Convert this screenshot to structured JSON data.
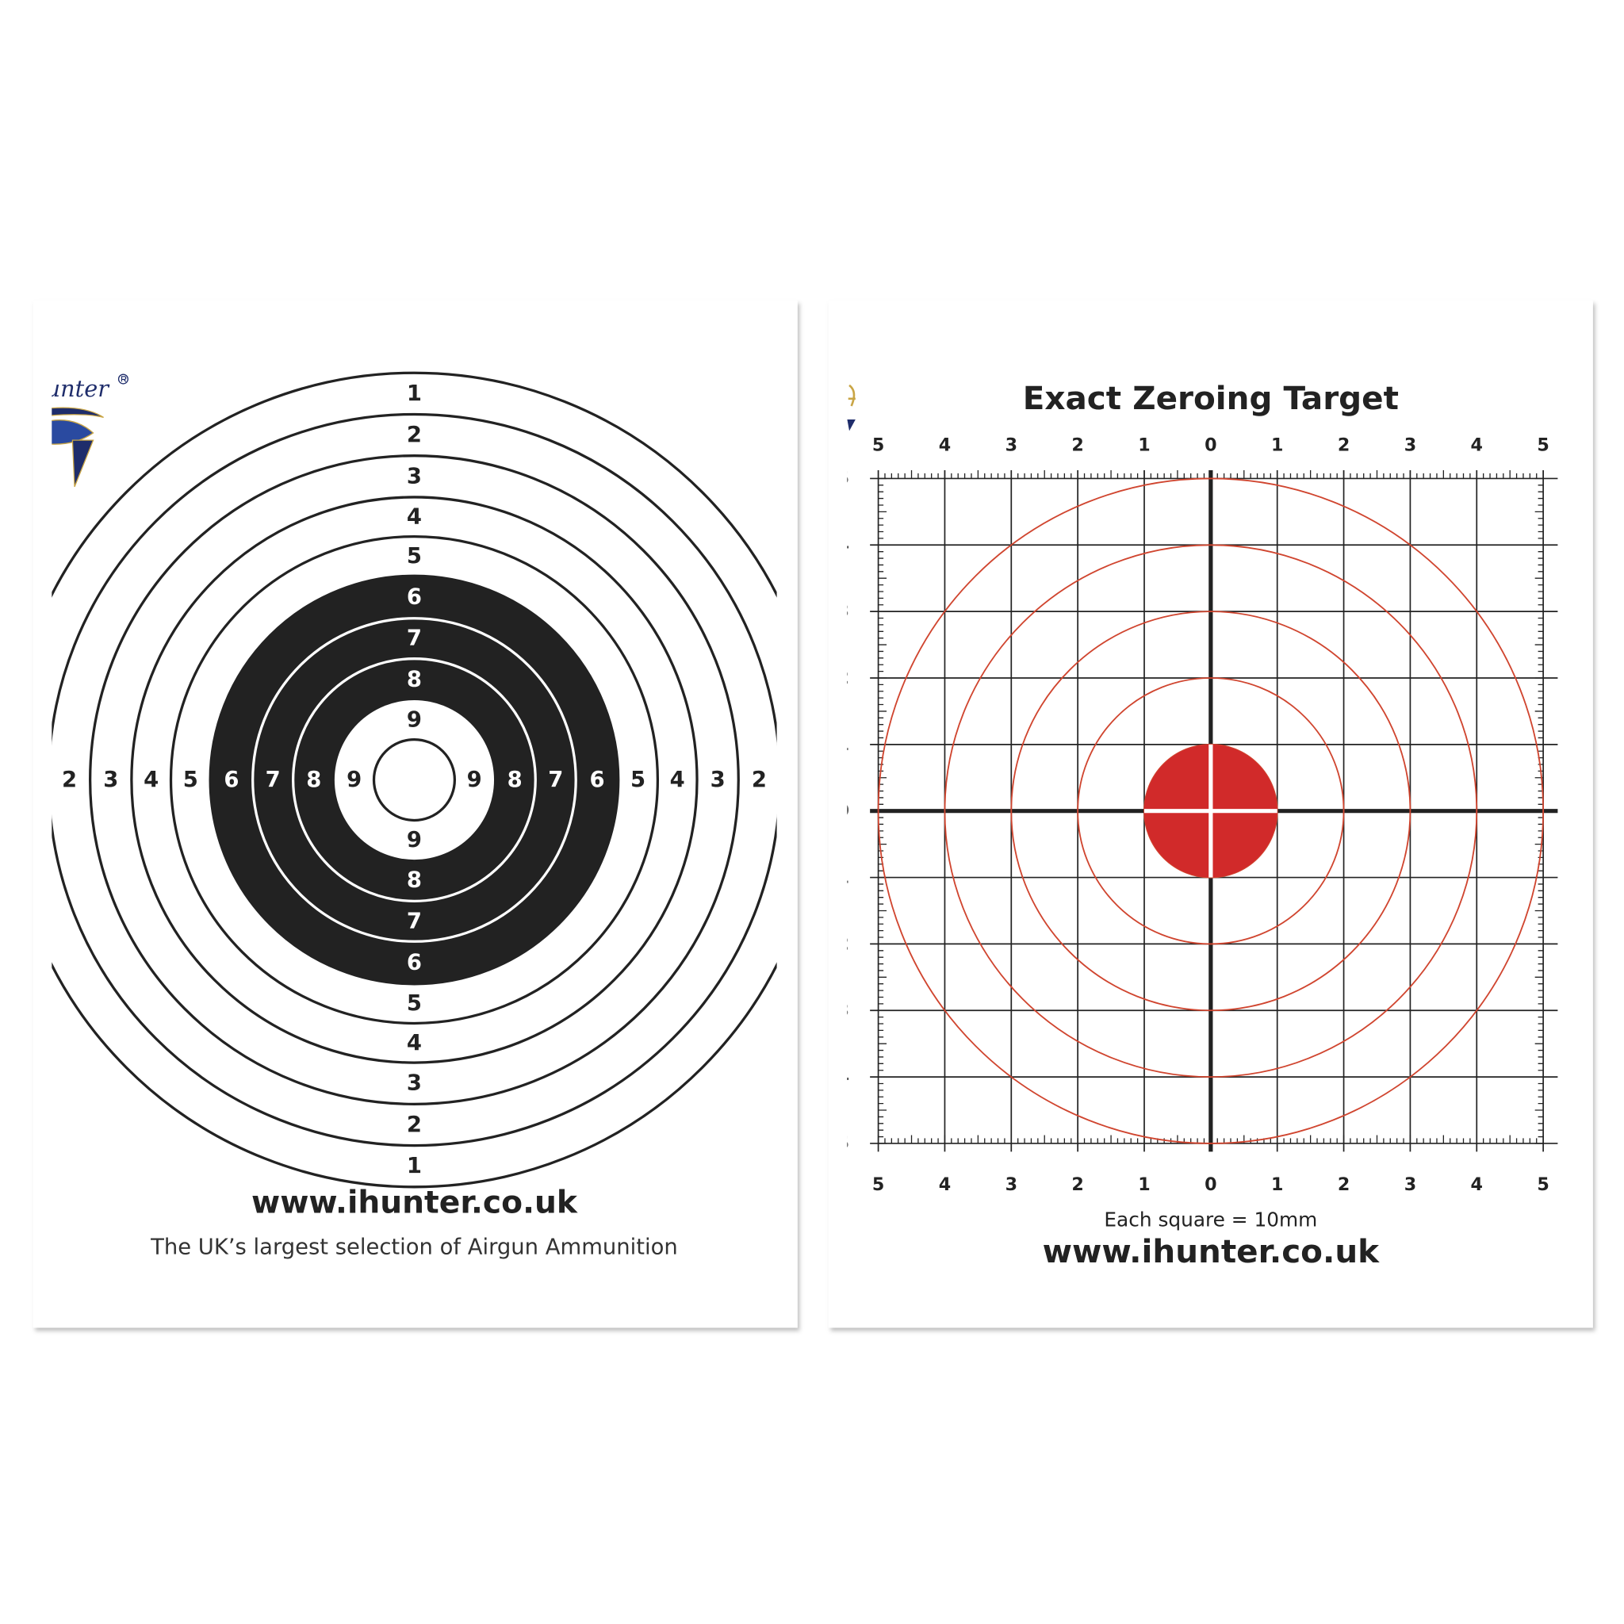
{
  "left_target": {
    "ring_labels_vertical": [
      "1",
      "2",
      "3",
      "4",
      "5",
      "6",
      "7",
      "8",
      "9"
    ],
    "ring_labels_horizontal": [
      "2",
      "3",
      "4",
      "5",
      "6",
      "7",
      "8",
      "9"
    ],
    "website": "www.ihunter.co.uk",
    "tagline": "The UK’s largest selection of Airgun Ammunition",
    "logo_text": "hunter",
    "colors": {
      "ink": "#222222",
      "paper": "#ffffff",
      "logo_blue": "#1f2d6b",
      "logo_gold": "#c9a545"
    }
  },
  "right_target": {
    "title": "Exact Zeroing Target",
    "axis_labels": [
      "5",
      "4",
      "3",
      "2",
      "1",
      "0",
      "1",
      "2",
      "3",
      "4",
      "5"
    ],
    "caption": "Each square = 10mm",
    "website": "www.ihunter.co.uk",
    "grid_squares": 10,
    "ring_count": 5,
    "colors": {
      "grid": "#222222",
      "rings": "#d0452f",
      "bull": "#d12a2a"
    }
  }
}
